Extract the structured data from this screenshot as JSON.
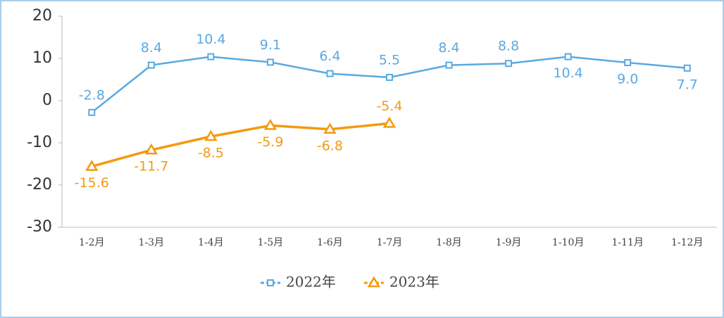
{
  "chart_data": {
    "type": "line",
    "categories": [
      "1-2月",
      "1-3月",
      "1-4月",
      "1-5月",
      "1-6月",
      "1-7月",
      "1-8月",
      "1-9月",
      "1-10月",
      "1-11月",
      "1-12月"
    ],
    "series": [
      {
        "name": "2022年",
        "color": "#5aa9e2",
        "marker": "square",
        "values": [
          -2.8,
          8.4,
          10.4,
          9.1,
          6.4,
          5.5,
          8.4,
          8.8,
          10.4,
          9.0,
          7.7
        ],
        "value_labels": [
          "-2.8",
          "8.4",
          "10.4",
          "9.1",
          "6.4",
          "5.5",
          "8.4",
          "8.8",
          "10.4",
          "9.0",
          "7.7"
        ]
      },
      {
        "name": "2023年",
        "color": "#f39a0f",
        "marker": "triangle",
        "values": [
          -15.6,
          -11.7,
          -8.5,
          -5.9,
          -6.8,
          -5.4,
          null,
          null,
          null,
          null,
          null
        ]
      }
    ],
    "ylim": [
      -30,
      20
    ],
    "yticks": [
      -30,
      -20,
      -10,
      0,
      10,
      20
    ],
    "grid": false,
    "legend": "bottom"
  }
}
